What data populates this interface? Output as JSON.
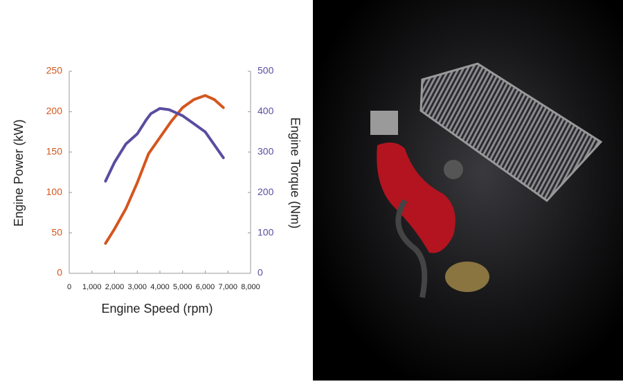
{
  "chart_data": {
    "type": "line",
    "xlabel": "Engine Speed (rpm)",
    "ylabel": "Engine Power (kW)",
    "y2label": "Engine Torque (Nm)",
    "xlim": [
      0,
      8000
    ],
    "xticks": [
      0,
      {
        "value": 1000,
        "label": "1,000"
      },
      {
        "value": 2000,
        "label": "2,000"
      },
      {
        "value": 3000,
        "label": "3,000"
      },
      {
        "value": 4000,
        "label": "4,000"
      },
      {
        "value": 5000,
        "label": "5,000"
      },
      {
        "value": 6000,
        "label": "6,000"
      },
      {
        "value": 7000,
        "label": "7,000"
      },
      {
        "value": 8000,
        "label": "8,000"
      }
    ],
    "ylim": [
      0,
      250
    ],
    "yticks": [
      0,
      50,
      100,
      150,
      200,
      250
    ],
    "y2lim": [
      0,
      500
    ],
    "y2ticks": [
      0,
      100,
      200,
      300,
      400,
      500
    ],
    "ycolor": "#d4561e",
    "y2color": "#5b4ca0",
    "series": [
      {
        "color": "#d4561e",
        "x": [
          1600,
          2000,
          2500,
          3000,
          3500,
          4000,
          4500,
          5000,
          5500,
          6000,
          6400,
          6800
        ],
        "values": [
          37,
          55,
          80,
          112,
          148,
          168,
          188,
          205,
          215,
          220,
          215,
          205
        ]
      },
      {
        "color": "#5b4ca0",
        "axis": "y2",
        "x": [
          1600,
          2000,
          2500,
          3000,
          3400,
          3600,
          4000,
          4400,
          5000,
          5500,
          6000,
          6800
        ],
        "values": [
          228,
          275,
          320,
          345,
          380,
          395,
          408,
          405,
          390,
          370,
          350,
          286
        ]
      }
    ]
  }
}
